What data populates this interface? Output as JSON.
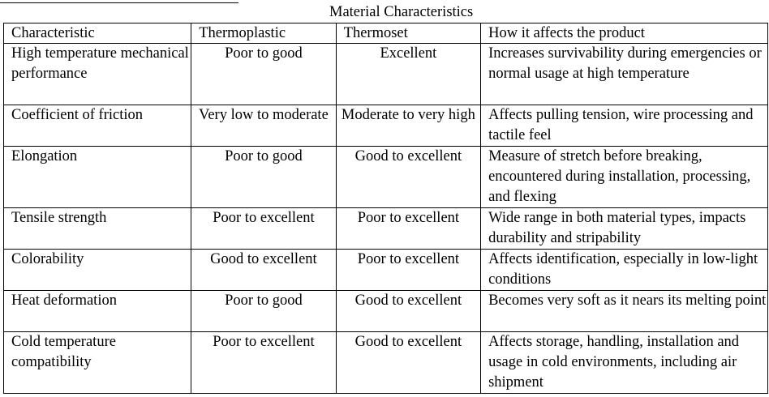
{
  "table": {
    "title": "Material Characteristics",
    "headers": [
      "Characteristic",
      "Thermoplastic",
      "Thermoset",
      "How it affects the product"
    ],
    "rows": [
      [
        "High temperature mechanical performance",
        "Poor to good",
        "Excellent",
        "Increases survivability during emergencies or normal usage at high temperature"
      ],
      [
        "Coefficient of friction",
        "Very low to moderate",
        "Moderate to very high",
        "Affects pulling tension, wire processing and tactile feel"
      ],
      [
        "Elongation",
        "Poor to good",
        "Good to excellent",
        "Measure of stretch before breaking, encountered during installation, processing, and flexing"
      ],
      [
        "Tensile strength",
        "Poor to excellent",
        "Poor to excellent",
        "Wide range in both material types, impacts durability and stripability"
      ],
      [
        "Colorability",
        "Good to excellent",
        "Poor to excellent",
        "Affects identification, especially in low-light conditions"
      ],
      [
        "Heat deformation",
        "Poor to good",
        "Good to excellent",
        "Becomes very soft as it nears its melting point"
      ],
      [
        "Cold temperature compatibility",
        "Poor to excellent",
        "Good to excellent",
        "Affects storage, handling, installation and usage in cold environments, including air shipment"
      ]
    ]
  }
}
